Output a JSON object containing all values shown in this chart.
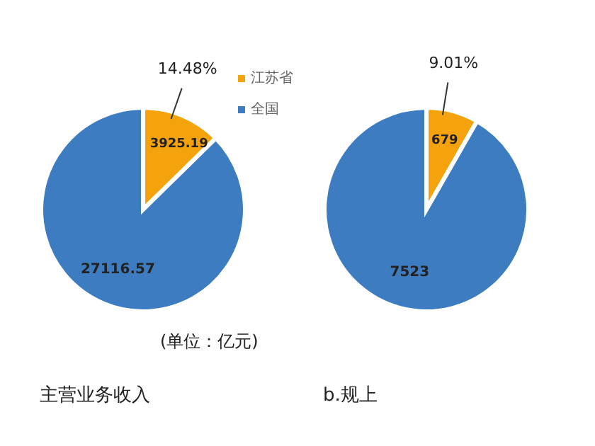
{
  "chart_data": [
    {
      "type": "pie",
      "title": "主营业务收入",
      "categories": [
        "江苏省",
        "全国"
      ],
      "values": [
        3925.19,
        27116.57
      ],
      "colors": [
        "#f5a30c",
        "#3e7cc1"
      ],
      "data_labels": true,
      "legend": "top right",
      "annotations": [
        "14.48%",
        "(单位：亿元)"
      ]
    },
    {
      "type": "pie",
      "title": "b.规上",
      "categories": [
        null,
        null
      ],
      "values": [
        679,
        7523
      ],
      "colors": [
        "#f5a30c",
        "#3e7cc1"
      ],
      "data_labels": true,
      "annotations": [
        "9.01%"
      ]
    }
  ]
}
